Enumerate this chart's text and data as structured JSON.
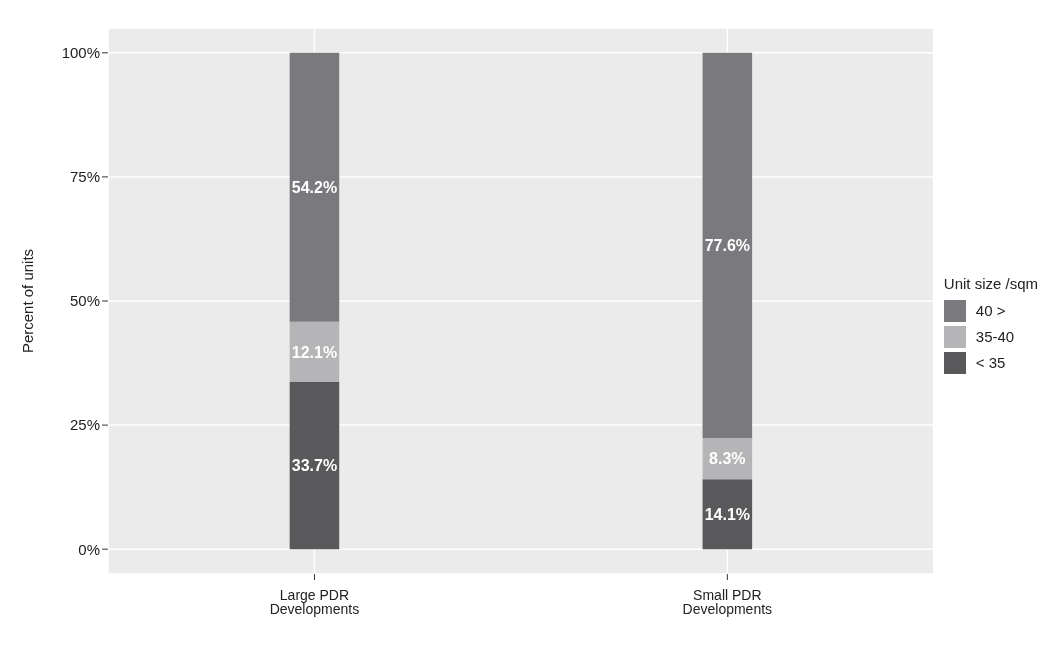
{
  "chart_data": {
    "type": "bar",
    "stacked": true,
    "ylabel": "Percent of units",
    "legend_title": "Unit size /sqm",
    "legend": "right",
    "grid": true,
    "categories": [
      "Large PDR Developments",
      "Small PDR Developments"
    ],
    "series": [
      {
        "name": "< 35",
        "color": "#59595b",
        "values": [
          33.7,
          14.1
        ],
        "value_labels": [
          "33.7%",
          "14.1%"
        ]
      },
      {
        "name": "35-40",
        "color": "#b5b5b7",
        "values": [
          12.1,
          8.3
        ],
        "value_labels": [
          "12.1%",
          "8.3%"
        ]
      },
      {
        "name": "40 >",
        "color": "#7a7a7e",
        "values": [
          54.2,
          77.6
        ],
        "value_labels": [
          "54.2%",
          "77.6%"
        ]
      }
    ],
    "ylim": [
      -5,
      105
    ],
    "yticks": [
      {
        "value": 0,
        "label": "0%"
      },
      {
        "value": 25,
        "label": "25%"
      },
      {
        "value": 50,
        "label": "50%"
      },
      {
        "value": 75,
        "label": "75%"
      },
      {
        "value": 100,
        "label": "100%"
      }
    ]
  }
}
